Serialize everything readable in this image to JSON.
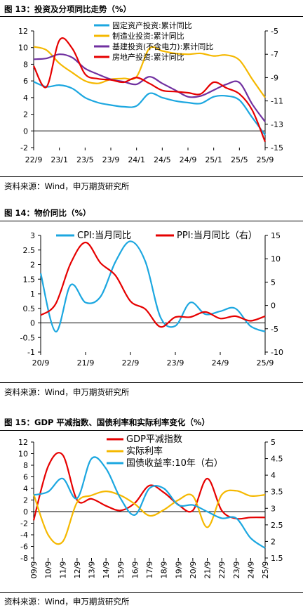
{
  "figures": [
    {
      "title": "图 13：投资及分项同比走势（%）",
      "source": "资料来源：Wind，申万期货研究所"
    },
    {
      "title": "图 14：物价同比（%）",
      "source": "资料来源：Wind，申万期货研究所"
    },
    {
      "title": "图 15：GDP 平减指数、国债利率和实际利率变化（%）",
      "source": "资料来源：Wind，申万期货研究所"
    }
  ],
  "chart_data": [
    {
      "type": "line",
      "title": "",
      "x": [
        "22/9",
        "22/11",
        "23/1",
        "23/3",
        "23/5",
        "23/7",
        "23/9",
        "23/11",
        "24/1",
        "24/3",
        "24/5",
        "24/7",
        "24/9",
        "24/11",
        "25/1",
        "25/3",
        "25/5",
        "25/7",
        "25/9"
      ],
      "xticks": [
        "22/9",
        "23/1",
        "23/5",
        "23/9",
        "24/1",
        "24/5",
        "24/9",
        "25/1",
        "25/5",
        "25/9"
      ],
      "ylim": [
        -2,
        12
      ],
      "yticks": [
        -2,
        0,
        2,
        4,
        6,
        8,
        10,
        12
      ],
      "y2lim": [
        -15,
        -5
      ],
      "y2ticks": [
        -15,
        -13,
        -11,
        -9,
        -7,
        -5
      ],
      "legend": "top-center",
      "series": [
        {
          "name": "固定资产投资:累计同比",
          "axis": "left",
          "color": "#1ca7e0",
          "values": [
            5.9,
            5.3,
            5.5,
            5.1,
            4.0,
            3.4,
            3.1,
            2.9,
            3.0,
            4.5,
            4.0,
            3.6,
            3.4,
            3.3,
            4.1,
            4.2,
            3.7,
            1.6,
            -0.5
          ]
        },
        {
          "name": "制造业投资:累计同比",
          "axis": "left",
          "color": "#f5b800",
          "values": [
            10.1,
            9.7,
            8.1,
            7.0,
            6.0,
            5.7,
            6.2,
            6.3,
            6.5,
            9.9,
            9.6,
            9.3,
            9.2,
            9.3,
            9.0,
            9.1,
            8.5,
            6.2,
            4.0
          ]
        },
        {
          "name": "基建投资(不含电力):累计同比",
          "axis": "left",
          "color": "#7030a0",
          "values": [
            8.6,
            8.7,
            9.2,
            8.8,
            7.5,
            6.8,
            6.2,
            5.9,
            5.6,
            6.5,
            5.7,
            4.9,
            4.1,
            4.2,
            4.9,
            5.6,
            5.8,
            3.2,
            1.1
          ]
        },
        {
          "name": "房地产投资:累计同比",
          "axis": "right",
          "color": "#e60000",
          "values": [
            -8.0,
            -9.8,
            -5.8,
            -6.5,
            -8.7,
            -9.1,
            -9.2,
            -9.4,
            -9.0,
            -9.5,
            -10.1,
            -10.2,
            -10.3,
            -10.4,
            -9.4,
            -9.9,
            -10.4,
            -11.8,
            -14.5
          ]
        }
      ]
    },
    {
      "type": "line",
      "title": "",
      "x": [
        "20/9",
        "21/1",
        "21/5",
        "21/9",
        "22/1",
        "22/5",
        "22/9",
        "23/1",
        "23/5",
        "23/9",
        "24/1",
        "24/5",
        "24/9",
        "25/1",
        "25/5",
        "25/9"
      ],
      "xticks": [
        "20/9",
        "21/9",
        "22/9",
        "23/9",
        "24/9",
        "25/9"
      ],
      "ylim": [
        -1,
        3
      ],
      "yticks": [
        -1,
        -0.5,
        0,
        0.5,
        1,
        1.5,
        2,
        2.5,
        3
      ],
      "y2lim": [
        -10,
        15
      ],
      "y2ticks": [
        -10,
        -5,
        0,
        5,
        10,
        15
      ],
      "legend": "top",
      "series": [
        {
          "name": "CPI:当月同比",
          "axis": "left",
          "color": "#1ca7e0",
          "values": [
            1.7,
            -0.3,
            1.3,
            0.7,
            0.9,
            2.1,
            2.8,
            2.1,
            0.2,
            -0.1,
            0.7,
            0.3,
            0.4,
            0.5,
            -0.1,
            -0.3
          ]
        },
        {
          "name": "PPI:当月同比（右）",
          "axis": "right",
          "color": "#e60000",
          "values": [
            -2.1,
            0.3,
            9.0,
            13.5,
            9.1,
            6.4,
            0.9,
            -0.8,
            -4.6,
            -2.5,
            -2.5,
            -1.4,
            -2.8,
            -2.3,
            -3.3,
            -2.3
          ]
        }
      ]
    },
    {
      "type": "line",
      "title": "",
      "x": [
        "09/9",
        "10/9",
        "11/9",
        "12/9",
        "13/9",
        "14/9",
        "15/9",
        "16/9",
        "17/9",
        "18/9",
        "19/9",
        "20/9",
        "21/9",
        "22/9",
        "23/9",
        "24/9",
        "25/9"
      ],
      "xticks": [
        "09/9",
        "10/9",
        "11/9",
        "12/9",
        "13/9",
        "14/9",
        "15/9",
        "16/9",
        "17/9",
        "18/9",
        "19/9",
        "20/9",
        "21/9",
        "22/9",
        "23/9",
        "24/9",
        "25/9"
      ],
      "ylim": [
        -8,
        12
      ],
      "yticks": [
        -8,
        -6,
        -4,
        -2,
        0,
        2,
        4,
        6,
        8,
        10,
        12
      ],
      "y2lim": [
        1.5,
        5
      ],
      "y2ticks": [
        1.5,
        2,
        2.5,
        3,
        3.5,
        4,
        4.5,
        5
      ],
      "legend": "top-center",
      "series": [
        {
          "name": "GDP平减指数",
          "axis": "left",
          "color": "#e60000",
          "values": [
            -1.5,
            7.8,
            9.8,
            2.0,
            2.2,
            1.0,
            0.2,
            1.5,
            4.5,
            3.3,
            1.2,
            0.2,
            5.7,
            0.2,
            -1.2,
            -1.0,
            -1.0
          ]
        },
        {
          "name": "实际利率",
          "axis": "left",
          "color": "#f5b800",
          "values": [
            3.0,
            -4.0,
            -5.2,
            1.6,
            2.8,
            3.5,
            2.8,
            1.3,
            -0.7,
            0.3,
            2.0,
            2.7,
            -2.7,
            2.9,
            3.6,
            2.7,
            2.9
          ]
        },
        {
          "name": "国债收益率:10年（右）",
          "axis": "right",
          "color": "#1ca7e0",
          "values": [
            3.4,
            3.5,
            3.9,
            3.3,
            4.5,
            4.2,
            3.3,
            2.8,
            3.6,
            3.6,
            3.1,
            3.1,
            2.9,
            2.7,
            2.7,
            2.1,
            1.8
          ]
        }
      ]
    }
  ]
}
